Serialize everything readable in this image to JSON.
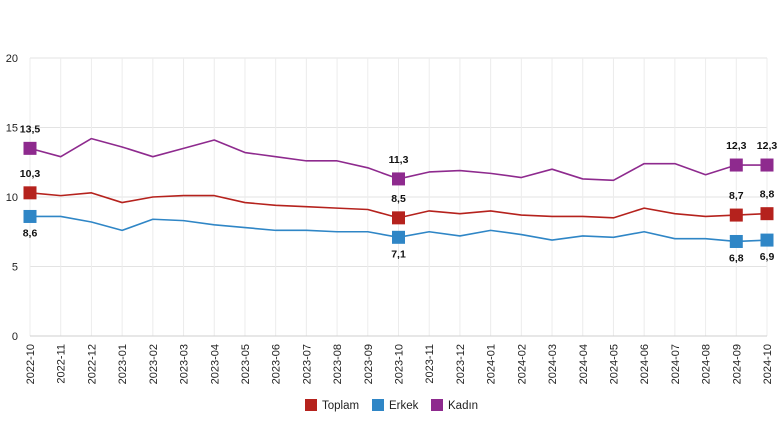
{
  "chart_data": {
    "type": "line",
    "title": "",
    "xlabel": "",
    "ylabel": "",
    "ylim": [
      0,
      20
    ],
    "yticks": [
      0,
      5,
      10,
      15,
      20
    ],
    "grid": true,
    "legend_position": "bottom",
    "categories": [
      "2022-10",
      "2022-11",
      "2022-12",
      "2023-01",
      "2023-02",
      "2023-03",
      "2023-04",
      "2023-05",
      "2023-06",
      "2023-07",
      "2023-08",
      "2023-09",
      "2023-10",
      "2023-11",
      "2023-12",
      "2024-01",
      "2024-02",
      "2024-03",
      "2024-04",
      "2024-05",
      "2024-06",
      "2024-07",
      "2024-08",
      "2024-09",
      "2024-10"
    ],
    "series": [
      {
        "name": "Toplam",
        "color": "#b5221d",
        "values": [
          10.3,
          10.1,
          10.3,
          9.6,
          10.0,
          10.1,
          10.1,
          9.6,
          9.4,
          9.3,
          9.2,
          9.1,
          8.5,
          9.0,
          8.8,
          9.0,
          8.7,
          8.6,
          8.6,
          8.5,
          9.2,
          8.8,
          8.6,
          8.7,
          8.8
        ],
        "labels": [
          {
            "index": 0,
            "text": "10,3"
          },
          {
            "index": 12,
            "text": "8,5"
          },
          {
            "index": 23,
            "text": "8,7"
          },
          {
            "index": 24,
            "text": "8,8"
          }
        ]
      },
      {
        "name": "Erkek",
        "color": "#2f86c6",
        "values": [
          8.6,
          8.6,
          8.2,
          7.6,
          8.4,
          8.3,
          8.0,
          7.8,
          7.6,
          7.6,
          7.5,
          7.5,
          7.1,
          7.5,
          7.2,
          7.6,
          7.3,
          6.9,
          7.2,
          7.1,
          7.5,
          7.0,
          7.0,
          6.8,
          6.9
        ],
        "labels": [
          {
            "index": 0,
            "text": "8,6"
          },
          {
            "index": 12,
            "text": "7,1"
          },
          {
            "index": 23,
            "text": "6,8"
          },
          {
            "index": 24,
            "text": "6,9"
          }
        ]
      },
      {
        "name": "Kadın",
        "color": "#8e2a8e",
        "values": [
          13.5,
          12.9,
          14.2,
          13.6,
          12.9,
          13.5,
          14.1,
          13.2,
          12.9,
          12.6,
          12.6,
          12.1,
          11.3,
          11.8,
          11.9,
          11.7,
          11.4,
          12.0,
          11.3,
          11.2,
          12.4,
          12.4,
          11.6,
          12.3,
          12.3
        ],
        "labels": [
          {
            "index": 0,
            "text": "13,5"
          },
          {
            "index": 12,
            "text": "11,3"
          },
          {
            "index": 23,
            "text": "12,3"
          },
          {
            "index": 24,
            "text": "12,3"
          }
        ]
      }
    ]
  }
}
